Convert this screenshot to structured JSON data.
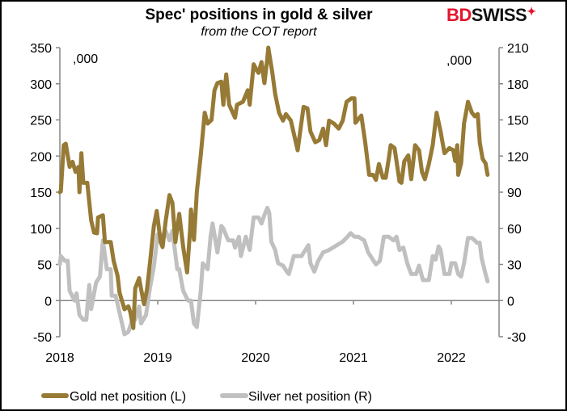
{
  "chart_data": {
    "type": "line",
    "title": "Spec' positions in gold & silver",
    "subtitle": "from the COT report",
    "left_unit_label": ",000",
    "right_unit_label": ",000",
    "x_ticks": [
      "2018",
      "2019",
      "2020",
      "2021",
      "2022"
    ],
    "xlim": [
      2018,
      2022.7
    ],
    "left_axis": {
      "ylim": [
        -50,
        350
      ],
      "ticks": [
        "-50",
        "0",
        "50",
        "100",
        "150",
        "200",
        "250",
        "300",
        "350"
      ]
    },
    "right_axis": {
      "ylim": [
        -30,
        210
      ],
      "ticks": [
        "-30",
        "0",
        "30",
        "60",
        "90",
        "120",
        "150",
        "180",
        "210"
      ]
    },
    "grid": false,
    "legend_placement": "bottom",
    "series": [
      {
        "name": "Gold net position (L)",
        "axis": "left",
        "color": "#967a35",
        "points": [
          [
            2018.0,
            150
          ],
          [
            2018.01,
            151
          ],
          [
            2018.04,
            215
          ],
          [
            2018.06,
            217
          ],
          [
            2018.1,
            185
          ],
          [
            2018.13,
            192
          ],
          [
            2018.16,
            178
          ],
          [
            2018.19,
            185
          ],
          [
            2018.2,
            150
          ],
          [
            2018.22,
            204
          ],
          [
            2018.24,
            163
          ],
          [
            2018.28,
            163
          ],
          [
            2018.32,
            111
          ],
          [
            2018.35,
            94
          ],
          [
            2018.38,
            93
          ],
          [
            2018.39,
            115
          ],
          [
            2018.44,
            118
          ],
          [
            2018.46,
            81
          ],
          [
            2018.52,
            81
          ],
          [
            2018.55,
            55
          ],
          [
            2018.59,
            34
          ],
          [
            2018.61,
            11
          ],
          [
            2018.66,
            -12
          ],
          [
            2018.7,
            -8
          ],
          [
            2018.72,
            -16
          ],
          [
            2018.75,
            -38
          ],
          [
            2018.77,
            17
          ],
          [
            2018.81,
            31
          ],
          [
            2018.83,
            16
          ],
          [
            2018.86,
            -5
          ],
          [
            2018.89,
            15
          ],
          [
            2018.92,
            51
          ],
          [
            2018.96,
            103
          ],
          [
            2018.99,
            124
          ],
          [
            2019.03,
            81
          ],
          [
            2019.05,
            74
          ],
          [
            2019.08,
            109
          ],
          [
            2019.12,
            146
          ],
          [
            2019.15,
            135
          ],
          [
            2019.18,
            81
          ],
          [
            2019.22,
            120
          ],
          [
            2019.26,
            74
          ],
          [
            2019.3,
            39
          ],
          [
            2019.33,
            96
          ],
          [
            2019.34,
            126
          ],
          [
            2019.37,
            84
          ],
          [
            2019.4,
            151
          ],
          [
            2019.44,
            201
          ],
          [
            2019.48,
            260
          ],
          [
            2019.51,
            245
          ],
          [
            2019.55,
            250
          ],
          [
            2019.58,
            291
          ],
          [
            2019.61,
            301
          ],
          [
            2019.65,
            303
          ],
          [
            2019.67,
            271
          ],
          [
            2019.7,
            313
          ],
          [
            2019.73,
            271
          ],
          [
            2019.79,
            253
          ],
          [
            2019.81,
            271
          ],
          [
            2019.87,
            275
          ],
          [
            2019.92,
            291
          ],
          [
            2019.94,
            271
          ],
          [
            2019.98,
            327
          ],
          [
            2020.01,
            319
          ],
          [
            2020.03,
            315
          ],
          [
            2020.06,
            330
          ],
          [
            2020.09,
            301
          ],
          [
            2020.12,
            335
          ],
          [
            2020.13,
            350
          ],
          [
            2020.17,
            316
          ],
          [
            2020.2,
            286
          ],
          [
            2020.24,
            260
          ],
          [
            2020.28,
            249
          ],
          [
            2020.31,
            258
          ],
          [
            2020.36,
            249
          ],
          [
            2020.43,
            208
          ],
          [
            2020.49,
            268
          ],
          [
            2020.53,
            266
          ],
          [
            2020.56,
            234
          ],
          [
            2020.61,
            219
          ],
          [
            2020.65,
            222
          ],
          [
            2020.69,
            238
          ],
          [
            2020.72,
            215
          ],
          [
            2020.75,
            249
          ],
          [
            2020.8,
            245
          ],
          [
            2020.85,
            238
          ],
          [
            2020.89,
            249
          ],
          [
            2020.93,
            275
          ],
          [
            2020.98,
            280
          ],
          [
            2021.01,
            280
          ],
          [
            2021.02,
            246
          ],
          [
            2021.08,
            256
          ],
          [
            2021.12,
            219
          ],
          [
            2021.16,
            174
          ],
          [
            2021.2,
            174
          ],
          [
            2021.23,
            167
          ],
          [
            2021.26,
            189
          ],
          [
            2021.3,
            170
          ],
          [
            2021.33,
            170
          ],
          [
            2021.36,
            196
          ],
          [
            2021.38,
            215
          ],
          [
            2021.42,
            211
          ],
          [
            2021.47,
            165
          ],
          [
            2021.49,
            163
          ],
          [
            2021.52,
            193
          ],
          [
            2021.56,
            201
          ],
          [
            2021.59,
            168
          ],
          [
            2021.63,
            215
          ],
          [
            2021.67,
            208
          ],
          [
            2021.7,
            178
          ],
          [
            2021.73,
            168
          ],
          [
            2021.77,
            189
          ],
          [
            2021.81,
            215
          ],
          [
            2021.85,
            260
          ],
          [
            2021.89,
            234
          ],
          [
            2021.93,
            204
          ],
          [
            2021.98,
            211
          ],
          [
            2022.02,
            208
          ],
          [
            2022.04,
            193
          ],
          [
            2022.06,
            215
          ],
          [
            2022.07,
            174
          ],
          [
            2022.1,
            190
          ],
          [
            2022.13,
            245
          ],
          [
            2022.17,
            275
          ],
          [
            2022.21,
            260
          ],
          [
            2022.24,
            255
          ],
          [
            2022.27,
            258
          ],
          [
            2022.29,
            219
          ],
          [
            2022.32,
            196
          ],
          [
            2022.35,
            190
          ],
          [
            2022.37,
            174
          ]
        ]
      },
      {
        "name": "Silver net position (R)",
        "axis": "right",
        "color": "#c0c0c0",
        "points": [
          [
            2018.0,
            30
          ],
          [
            2018.01,
            37
          ],
          [
            2018.05,
            33
          ],
          [
            2018.08,
            33
          ],
          [
            2018.1,
            8
          ],
          [
            2018.15,
            0
          ],
          [
            2018.17,
            6
          ],
          [
            2018.2,
            -12
          ],
          [
            2018.24,
            -16
          ],
          [
            2018.27,
            -16
          ],
          [
            2018.3,
            13
          ],
          [
            2018.32,
            -7
          ],
          [
            2018.37,
            15
          ],
          [
            2018.41,
            20
          ],
          [
            2018.44,
            50
          ],
          [
            2018.48,
            26
          ],
          [
            2018.52,
            26
          ],
          [
            2018.53,
            4
          ],
          [
            2018.57,
            4
          ],
          [
            2018.61,
            -10
          ],
          [
            2018.66,
            -28
          ],
          [
            2018.7,
            -26
          ],
          [
            2018.74,
            -16
          ],
          [
            2018.77,
            -16
          ],
          [
            2018.81,
            -5
          ],
          [
            2018.83,
            -19
          ],
          [
            2018.88,
            -12
          ],
          [
            2018.92,
            10
          ],
          [
            2018.96,
            28
          ],
          [
            2019.0,
            55
          ],
          [
            2019.04,
            53
          ],
          [
            2019.08,
            58
          ],
          [
            2019.12,
            50
          ],
          [
            2019.15,
            58
          ],
          [
            2019.2,
            26
          ],
          [
            2019.22,
            26
          ],
          [
            2019.26,
            8
          ],
          [
            2019.31,
            0
          ],
          [
            2019.34,
            0
          ],
          [
            2019.37,
            -19
          ],
          [
            2019.4,
            -22
          ],
          [
            2019.44,
            8
          ],
          [
            2019.46,
            31
          ],
          [
            2019.51,
            26
          ],
          [
            2019.54,
            53
          ],
          [
            2019.56,
            64
          ],
          [
            2019.61,
            40
          ],
          [
            2019.65,
            62
          ],
          [
            2019.67,
            60
          ],
          [
            2019.72,
            50
          ],
          [
            2019.77,
            50
          ],
          [
            2019.79,
            44
          ],
          [
            2019.83,
            53
          ],
          [
            2019.85,
            37
          ],
          [
            2019.9,
            53
          ],
          [
            2019.94,
            42
          ],
          [
            2019.98,
            69
          ],
          [
            2020.03,
            69
          ],
          [
            2020.06,
            64
          ],
          [
            2020.09,
            71
          ],
          [
            2020.12,
            77
          ],
          [
            2020.14,
            73
          ],
          [
            2020.16,
            49
          ],
          [
            2020.2,
            42
          ],
          [
            2020.23,
            31
          ],
          [
            2020.28,
            29
          ],
          [
            2020.32,
            24
          ],
          [
            2020.34,
            22
          ],
          [
            2020.39,
            37
          ],
          [
            2020.43,
            37
          ],
          [
            2020.47,
            37
          ],
          [
            2020.54,
            46
          ],
          [
            2020.56,
            31
          ],
          [
            2020.6,
            24
          ],
          [
            2020.64,
            33
          ],
          [
            2020.69,
            40
          ],
          [
            2020.75,
            42
          ],
          [
            2020.79,
            44
          ],
          [
            2020.89,
            49
          ],
          [
            2020.94,
            53
          ],
          [
            2020.97,
            56
          ],
          [
            2021.01,
            53
          ],
          [
            2021.05,
            53
          ],
          [
            2021.11,
            50
          ],
          [
            2021.15,
            40
          ],
          [
            2021.23,
            30
          ],
          [
            2021.27,
            33
          ],
          [
            2021.31,
            53
          ],
          [
            2021.36,
            53
          ],
          [
            2021.41,
            50
          ],
          [
            2021.44,
            53
          ],
          [
            2021.47,
            42
          ],
          [
            2021.51,
            44
          ],
          [
            2021.55,
            31
          ],
          [
            2021.59,
            22
          ],
          [
            2021.64,
            22
          ],
          [
            2021.67,
            29
          ],
          [
            2021.71,
            17
          ],
          [
            2021.77,
            17
          ],
          [
            2021.81,
            37
          ],
          [
            2021.84,
            34
          ],
          [
            2021.87,
            45
          ],
          [
            2021.89,
            42
          ],
          [
            2021.93,
            22
          ],
          [
            2021.98,
            22
          ],
          [
            2022.0,
            31
          ],
          [
            2022.04,
            31
          ],
          [
            2022.07,
            22
          ],
          [
            2022.1,
            20
          ],
          [
            2022.13,
            31
          ],
          [
            2022.17,
            52
          ],
          [
            2022.21,
            52
          ],
          [
            2022.24,
            50
          ],
          [
            2022.26,
            48
          ],
          [
            2022.29,
            48
          ],
          [
            2022.31,
            35
          ],
          [
            2022.35,
            22
          ],
          [
            2022.37,
            16
          ]
        ]
      }
    ]
  },
  "logo": {
    "text": "BDSWISS",
    "part1": "BD",
    "part2": "SWISS"
  }
}
